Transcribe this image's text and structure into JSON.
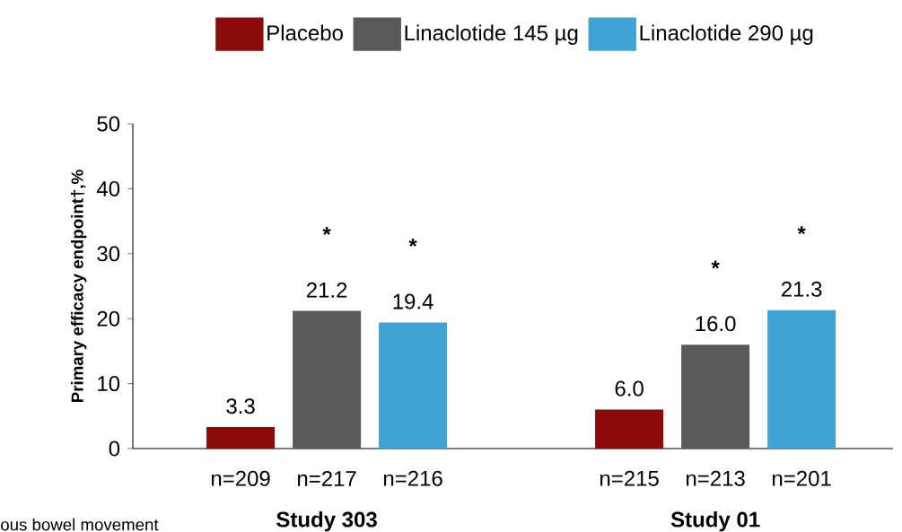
{
  "chart_data": {
    "type": "bar",
    "categories": [
      "Study 303",
      "Study 01"
    ],
    "series": [
      {
        "name": "Placebo",
        "color": "#8b0a0a",
        "values": [
          3.3,
          6.0
        ],
        "value_labels": [
          "3.3",
          "6.0"
        ]
      },
      {
        "name": "Linaclotide 145 µg",
        "color": "#595959",
        "values": [
          21.2,
          16.0
        ],
        "value_labels": [
          "21.2",
          "16.0"
        ]
      },
      {
        "name": "Linaclotide 290 µg",
        "color": "#3fa3d6",
        "values": [
          19.4,
          21.3
        ],
        "value_labels": [
          "19.4",
          "21.3"
        ]
      }
    ],
    "ylabel": "Primary efficacy endpoint†,%",
    "ylim": [
      0,
      50
    ],
    "yticks": [
      0,
      10,
      20,
      30,
      40,
      50
    ],
    "legend": "top",
    "grid": false,
    "annotations": [
      "n=209",
      "n=217",
      "n=216",
      "n=215",
      "n=213",
      "n=201",
      "*",
      "*",
      "*",
      "*",
      "ous bowel movement"
    ]
  }
}
